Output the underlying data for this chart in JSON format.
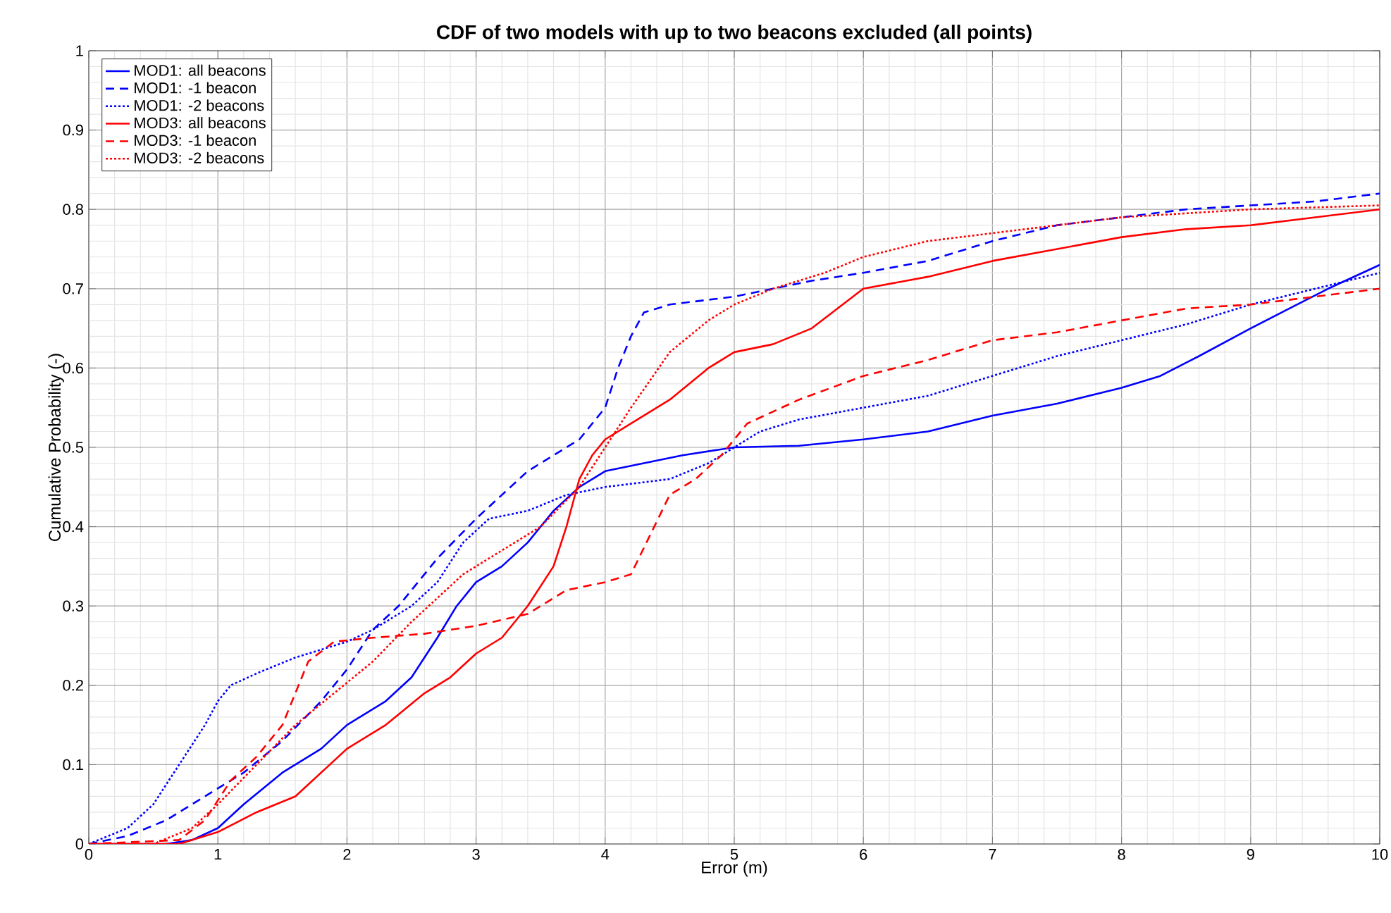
{
  "chart_data": {
    "type": "line",
    "title": "CDF of two models with up to two beacons excluded (all points)",
    "xlabel": "Error (m)",
    "ylabel": "Cumulative Probability (-)",
    "xlim": [
      0,
      10
    ],
    "ylim": [
      0,
      1
    ],
    "xticks": [
      0,
      1,
      2,
      3,
      4,
      5,
      6,
      7,
      8,
      9,
      10
    ],
    "yticks": [
      0,
      0.1,
      0.2,
      0.3,
      0.4,
      0.5,
      0.6,
      0.7,
      0.8,
      0.9,
      1
    ],
    "grid": true,
    "legend": "top left",
    "marker": "none",
    "series": [
      {
        "name": "MOD1: all beacons",
        "color": "#0000ff",
        "line_style": "solid",
        "x": [
          0,
          0.6,
          0.8,
          1.0,
          1.2,
          1.5,
          1.8,
          2.0,
          2.3,
          2.5,
          2.7,
          2.85,
          3.0,
          3.2,
          3.4,
          3.6,
          3.8,
          4.0,
          4.3,
          4.6,
          5.0,
          5.5,
          6.0,
          6.5,
          7.0,
          7.5,
          8.0,
          8.3,
          8.6,
          9.0,
          9.3,
          9.6,
          10
        ],
        "values": [
          0,
          0,
          0.005,
          0.02,
          0.05,
          0.09,
          0.12,
          0.15,
          0.18,
          0.21,
          0.26,
          0.3,
          0.33,
          0.35,
          0.38,
          0.42,
          0.45,
          0.47,
          0.48,
          0.49,
          0.5,
          0.502,
          0.51,
          0.52,
          0.54,
          0.555,
          0.575,
          0.59,
          0.615,
          0.65,
          0.675,
          0.7,
          0.73
        ]
      },
      {
        "name": "MOD1: -1 beacon",
        "color": "#0000ff",
        "line_style": "dashed",
        "x": [
          0,
          0.3,
          0.6,
          0.9,
          1.2,
          1.5,
          1.8,
          2.0,
          2.2,
          2.4,
          2.7,
          3.0,
          3.2,
          3.4,
          3.6,
          3.8,
          4.0,
          4.1,
          4.2,
          4.3,
          4.5,
          5.0,
          5.3,
          5.6,
          6.0,
          6.5,
          7.0,
          7.5,
          8.0,
          8.5,
          9.0,
          9.5,
          10
        ],
        "values": [
          0,
          0.01,
          0.03,
          0.06,
          0.09,
          0.13,
          0.18,
          0.22,
          0.27,
          0.3,
          0.36,
          0.41,
          0.44,
          0.47,
          0.49,
          0.51,
          0.55,
          0.6,
          0.64,
          0.67,
          0.68,
          0.69,
          0.7,
          0.71,
          0.72,
          0.735,
          0.76,
          0.78,
          0.79,
          0.8,
          0.805,
          0.81,
          0.82
        ]
      },
      {
        "name": "MOD1: -2 beacons",
        "color": "#0000ff",
        "line_style": "dotted",
        "x": [
          0,
          0.3,
          0.5,
          0.7,
          0.9,
          1.0,
          1.1,
          1.3,
          1.6,
          2.0,
          2.2,
          2.5,
          2.7,
          2.9,
          3.1,
          3.4,
          3.7,
          4.0,
          4.5,
          4.8,
          5.0,
          5.2,
          5.5,
          6.0,
          6.5,
          7.0,
          7.5,
          8.0,
          8.5,
          9.0,
          9.5,
          10
        ],
        "values": [
          0,
          0.02,
          0.05,
          0.1,
          0.15,
          0.18,
          0.2,
          0.215,
          0.235,
          0.255,
          0.27,
          0.3,
          0.33,
          0.38,
          0.41,
          0.42,
          0.44,
          0.45,
          0.46,
          0.48,
          0.5,
          0.52,
          0.535,
          0.55,
          0.565,
          0.59,
          0.615,
          0.635,
          0.655,
          0.68,
          0.7,
          0.72
        ]
      },
      {
        "name": "MOD3: all beacons",
        "color": "#ff0000",
        "line_style": "solid",
        "x": [
          0,
          0.7,
          1.0,
          1.3,
          1.6,
          2.0,
          2.3,
          2.6,
          2.8,
          3.0,
          3.2,
          3.4,
          3.6,
          3.7,
          3.8,
          3.9,
          4.0,
          4.2,
          4.5,
          4.8,
          5.0,
          5.3,
          5.6,
          6.0,
          6.5,
          7.0,
          7.5,
          8.0,
          8.5,
          9.0,
          9.5,
          10
        ],
        "values": [
          0,
          0,
          0.015,
          0.04,
          0.06,
          0.12,
          0.15,
          0.19,
          0.21,
          0.24,
          0.26,
          0.3,
          0.35,
          0.4,
          0.46,
          0.49,
          0.51,
          0.53,
          0.56,
          0.6,
          0.62,
          0.63,
          0.65,
          0.7,
          0.715,
          0.735,
          0.75,
          0.765,
          0.775,
          0.78,
          0.79,
          0.8
        ]
      },
      {
        "name": "MOD3: -1 beacon",
        "color": "#ff0000",
        "line_style": "dashed",
        "x": [
          0,
          0.7,
          0.9,
          1.1,
          1.3,
          1.5,
          1.7,
          1.9,
          2.2,
          2.6,
          3.0,
          3.4,
          3.7,
          4.0,
          4.2,
          4.35,
          4.5,
          4.7,
          4.9,
          5.1,
          5.5,
          6.0,
          6.5,
          7.0,
          7.5,
          8.0,
          8.5,
          9.0,
          9.5,
          10
        ],
        "values": [
          0,
          0.005,
          0.03,
          0.08,
          0.11,
          0.15,
          0.23,
          0.255,
          0.26,
          0.265,
          0.275,
          0.29,
          0.32,
          0.33,
          0.34,
          0.39,
          0.44,
          0.46,
          0.49,
          0.53,
          0.56,
          0.59,
          0.61,
          0.635,
          0.645,
          0.66,
          0.675,
          0.68,
          0.69,
          0.7
        ]
      },
      {
        "name": "MOD3: -2 beacons",
        "color": "#ff0000",
        "line_style": "dotted",
        "x": [
          0,
          0.5,
          0.8,
          1.0,
          1.3,
          1.6,
          1.9,
          2.2,
          2.5,
          2.7,
          2.9,
          3.2,
          3.5,
          3.8,
          4.0,
          4.2,
          4.5,
          4.8,
          5.0,
          5.3,
          5.7,
          6.0,
          6.5,
          7.0,
          7.5,
          8.0,
          8.5,
          9.0,
          10
        ],
        "values": [
          0,
          0,
          0.02,
          0.05,
          0.1,
          0.15,
          0.19,
          0.23,
          0.28,
          0.31,
          0.34,
          0.37,
          0.4,
          0.45,
          0.5,
          0.55,
          0.62,
          0.66,
          0.68,
          0.7,
          0.72,
          0.74,
          0.76,
          0.77,
          0.78,
          0.79,
          0.795,
          0.8,
          0.805
        ]
      }
    ]
  }
}
